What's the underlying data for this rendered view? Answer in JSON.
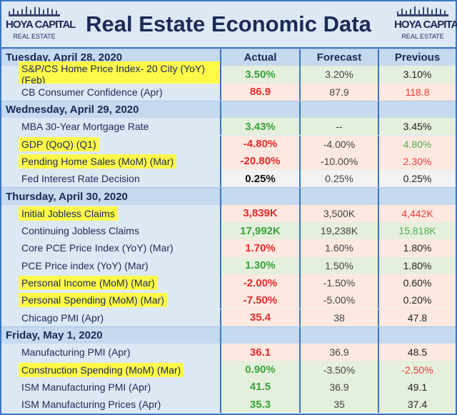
{
  "header": {
    "title": "Real Estate Economic Data",
    "logo_text": "HOYA CAPITAL",
    "logo_sub": "REAL ESTATE"
  },
  "columns": {
    "actual": "Actual",
    "forecast": "Forecast",
    "previous": "Previous"
  },
  "colors": {
    "green": "#3aa43a",
    "red": "#e8282a",
    "row_green": "#e4efdc",
    "row_pink": "#fde9e0",
    "row_gray": "#f2f2f2",
    "highlight": "#fff94a",
    "navy": "#1b2a55"
  },
  "sections": [
    {
      "date": "Tuesday, April 28, 2020",
      "rows": [
        {
          "name": "S&P/CS Home Price Index- 20 City (YoY) (Feb)",
          "actual": "3.50%",
          "forecast": "3.20%",
          "previous": "3.10%",
          "bg": "green",
          "ac": "green",
          "pc": "def",
          "hl": true
        },
        {
          "name": "CB Consumer Confidence (Apr)",
          "actual": "86.9",
          "forecast": "87.9",
          "previous": "118.8",
          "bg": "pink",
          "ac": "red",
          "pc": "red",
          "hl": false
        }
      ]
    },
    {
      "date": "Wednesday, April 29, 2020",
      "rows": [
        {
          "name": "MBA 30-Year Mortgage Rate",
          "actual": "3.43%",
          "forecast": "--",
          "previous": "3.45%",
          "bg": "green",
          "ac": "green",
          "pc": "def",
          "hl": false
        },
        {
          "name": "GDP (QoQ) (Q1)",
          "actual": "-4.80%",
          "forecast": "-4.00%",
          "previous": "4.80%",
          "bg": "pink",
          "ac": "red",
          "pc": "green",
          "hl": true
        },
        {
          "name": "Pending Home Sales (MoM) (Mar)",
          "actual": "-20.80%",
          "forecast": "-10.00%",
          "previous": "2.30%",
          "bg": "pink",
          "ac": "red",
          "pc": "red",
          "hl": true
        },
        {
          "name": "Fed Interest Rate Decision",
          "actual": "0.25%",
          "forecast": "0.25%",
          "previous": "0.25%",
          "bg": "gray",
          "ac": "black",
          "pc": "def",
          "hl": false
        }
      ]
    },
    {
      "date": "Thursday, April 30, 2020",
      "rows": [
        {
          "name": "Initial Jobless Claims",
          "actual": "3,839K",
          "forecast": "3,500K",
          "previous": "4,442K",
          "bg": "pink",
          "ac": "red",
          "pc": "red",
          "hl": true
        },
        {
          "name": "Continuing Jobless Claims",
          "actual": "17,992K",
          "forecast": "19,238K",
          "previous": "15,818K",
          "bg": "green",
          "ac": "green",
          "pc": "green",
          "hl": false
        },
        {
          "name": "Core PCE Price Index (YoY) (Mar)",
          "actual": "1.70%",
          "forecast": "1.60%",
          "previous": "1.80%",
          "bg": "pink",
          "ac": "red",
          "pc": "def",
          "hl": false
        },
        {
          "name": "PCE Price index (YoY) (Mar)",
          "actual": "1.30%",
          "forecast": "1.50%",
          "previous": "1.80%",
          "bg": "green",
          "ac": "green",
          "pc": "def",
          "hl": false
        },
        {
          "name": "Personal Income (MoM) (Mar)",
          "actual": "-2.00%",
          "forecast": "-1.50%",
          "previous": "0.60%",
          "bg": "pink",
          "ac": "red",
          "pc": "def",
          "hl": true
        },
        {
          "name": "Personal Spending (MoM) (Mar)",
          "actual": "-7.50%",
          "forecast": "-5.00%",
          "previous": "0.20%",
          "bg": "pink",
          "ac": "red",
          "pc": "def",
          "hl": true
        },
        {
          "name": "Chicago PMI (Apr)",
          "actual": "35.4",
          "forecast": "38",
          "previous": "47.8",
          "bg": "pink",
          "ac": "red",
          "pc": "def",
          "hl": false
        }
      ]
    },
    {
      "date": "Friday, May 1, 2020",
      "rows": [
        {
          "name": "Manufacturing PMI (Apr)",
          "actual": "36.1",
          "forecast": "36.9",
          "previous": "48.5",
          "bg": "pink",
          "ac": "red",
          "pc": "def",
          "hl": false
        },
        {
          "name": "Construction Spending (MoM) (Mar)",
          "actual": "0.90%",
          "forecast": "-3.50%",
          "previous": "-2.50%",
          "bg": "green",
          "ac": "green",
          "pc": "red",
          "hl": true
        },
        {
          "name": "ISM Manufacturing PMI (Apr)",
          "actual": "41.5",
          "forecast": "36.9",
          "previous": "49.1",
          "bg": "green",
          "ac": "green",
          "pc": "def",
          "hl": false
        },
        {
          "name": "ISM Manufacturing Prices (Apr)",
          "actual": "35.3",
          "forecast": "35",
          "previous": "37.4",
          "bg": "green",
          "ac": "green",
          "pc": "def",
          "hl": false
        }
      ]
    }
  ]
}
